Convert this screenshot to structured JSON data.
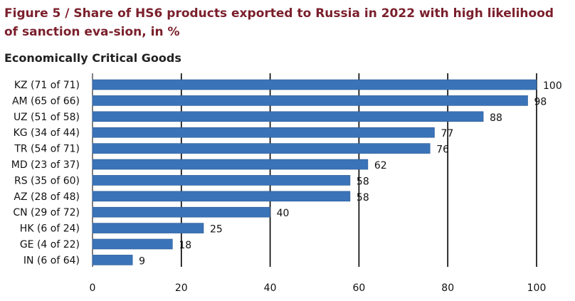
{
  "title": "Figure 5 / Share of HS6 products exported to Russia in 2022 with high likelihood of sanction eva-sion, in %",
  "subtitle": "Economically Critical Goods",
  "colors": {
    "bar": "#3a73b8",
    "bar_stroke": "#2a5a95",
    "title": "#7a1f2b",
    "grid": "#000000"
  },
  "chart_data": {
    "type": "bar",
    "orientation": "horizontal",
    "title": "Figure 5 / Share of HS6 products exported to Russia in 2022 with high likelihood of sanction eva-sion, in %",
    "subtitle": "Economically Critical Goods",
    "categories": [
      "KZ (71 of 71)",
      "AM (65 of 66)",
      "UZ (51 of 58)",
      "KG (34 of 44)",
      "TR (54 of 71)",
      "MD (23 of 37)",
      "RS (35 of 60)",
      "AZ (28 of 48)",
      "CN (29 of 72)",
      "HK (6 of 24)",
      "GE (4 of 22)",
      "IN (6 of 64)"
    ],
    "values": [
      100,
      98,
      88,
      77,
      76,
      62,
      58,
      58,
      40,
      25,
      18,
      9
    ],
    "xlim": [
      0,
      100
    ],
    "xticks": [
      0,
      20,
      40,
      60,
      80,
      100
    ],
    "xlabel": "",
    "ylabel": "",
    "grid": true
  }
}
